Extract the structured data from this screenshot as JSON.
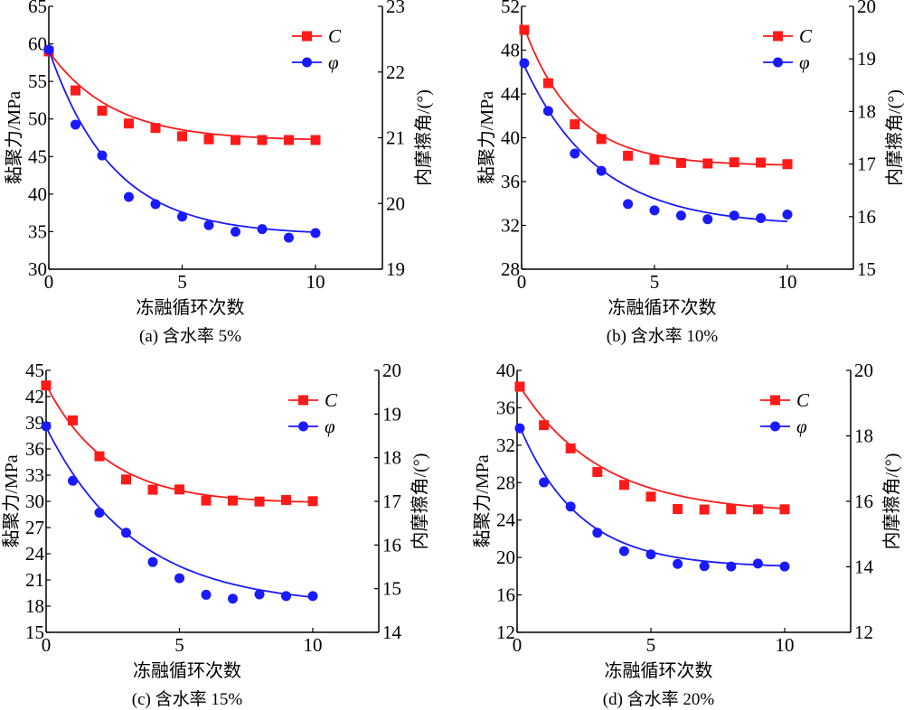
{
  "colors": {
    "C": "#ff1a1a",
    "phi": "#1a1aff",
    "axis": "#000000"
  },
  "chart_data": [
    {
      "type": "line",
      "caption": "(a) 含水率 5%",
      "xlabel": "冻融循环次数",
      "ylabel": "黏聚力/MPa",
      "y2label": "内摩擦角/(°)",
      "xlim": [
        0,
        12.5
      ],
      "xticks": [
        0,
        5,
        10
      ],
      "ylim": [
        30,
        65
      ],
      "yticks": [
        30,
        35,
        40,
        45,
        50,
        55,
        60,
        65
      ],
      "y2lim": [
        19,
        23
      ],
      "y2ticks": [
        19,
        20,
        21,
        22,
        23
      ],
      "legend": {
        "position": "top-right",
        "entries": [
          "C",
          "φ"
        ]
      },
      "x": [
        0,
        1,
        2,
        3,
        4,
        5,
        6,
        7,
        8,
        9,
        10
      ],
      "series": [
        {
          "name": "C",
          "axis": "left",
          "marker": "square",
          "values": [
            59.0,
            53.8,
            51.1,
            49.4,
            48.8,
            47.7,
            47.3,
            47.2,
            47.2,
            47.2,
            47.2
          ],
          "fit": {
            "a": 11.9,
            "k": 0.42,
            "c": 47.1
          }
        },
        {
          "name": "φ",
          "axis": "right",
          "marker": "circle",
          "values": [
            22.34,
            21.2,
            20.73,
            20.1,
            19.99,
            19.8,
            19.67,
            19.57,
            19.61,
            19.48,
            19.55
          ],
          "fit": {
            "a": 2.82,
            "k": 0.42,
            "c": 19.52
          }
        }
      ]
    },
    {
      "type": "line",
      "caption": "(b) 含水率 10%",
      "xlabel": "冻融循环次数",
      "ylabel": "黏聚力/MPa",
      "y2label": "内摩擦角/(°)",
      "xlim": [
        0,
        12.5
      ],
      "xticks": [
        0,
        5,
        10
      ],
      "ylim": [
        28,
        52
      ],
      "yticks": [
        28,
        32,
        36,
        40,
        44,
        48,
        52
      ],
      "y2lim": [
        15,
        20
      ],
      "y2ticks": [
        15,
        16,
        17,
        18,
        19,
        20
      ],
      "legend": {
        "position": "top-right",
        "entries": [
          "C",
          "φ"
        ]
      },
      "x": [
        0.1,
        1,
        2,
        3,
        4,
        5,
        6,
        7,
        8,
        9,
        10
      ],
      "series": [
        {
          "name": "C",
          "axis": "left",
          "marker": "square",
          "values": [
            49.85,
            44.98,
            41.23,
            39.88,
            38.36,
            37.98,
            37.7,
            37.65,
            37.76,
            37.73,
            37.59
          ],
          "fit": {
            "a": 12.6,
            "k": 0.52,
            "c": 37.45
          }
        },
        {
          "name": "φ",
          "axis": "right",
          "marker": "circle",
          "values": [
            18.92,
            18.01,
            17.2,
            16.87,
            16.24,
            16.12,
            16.02,
            15.95,
            16.02,
            15.97,
            16.04
          ],
          "fit": {
            "a": 3.05,
            "k": 0.36,
            "c": 15.82
          }
        }
      ]
    },
    {
      "type": "line",
      "caption": "(c) 含水率 15%",
      "xlabel": "冻融循环次数",
      "ylabel": "黏聚力/MPa",
      "y2label": "内摩擦角/(°)",
      "xlim": [
        0,
        12.5
      ],
      "xticks": [
        0,
        5,
        10
      ],
      "ylim": [
        15,
        45
      ],
      "yticks": [
        15,
        18,
        21,
        24,
        27,
        30,
        33,
        36,
        39,
        42,
        45
      ],
      "y2lim": [
        14,
        20
      ],
      "y2ticks": [
        14,
        15,
        16,
        17,
        18,
        19,
        20
      ],
      "legend": {
        "position": "top-right",
        "entries": [
          "C",
          "φ"
        ]
      },
      "x": [
        0,
        1,
        2,
        3,
        4,
        5,
        6,
        7,
        8,
        9,
        10
      ],
      "series": [
        {
          "name": "C",
          "axis": "left",
          "marker": "square",
          "values": [
            43.27,
            39.27,
            35.16,
            32.5,
            31.33,
            31.36,
            30.09,
            30.09,
            29.98,
            30.16,
            30.02
          ],
          "fit": {
            "a": 13.6,
            "k": 0.44,
            "c": 29.75
          }
        },
        {
          "name": "φ",
          "axis": "right",
          "marker": "circle",
          "values": [
            18.72,
            17.47,
            16.74,
            16.28,
            15.61,
            15.24,
            14.86,
            14.77,
            14.87,
            14.83,
            14.83
          ],
          "fit": {
            "a": 4.1,
            "k": 0.3,
            "c": 14.6
          }
        }
      ]
    },
    {
      "type": "line",
      "caption": "(d) 含水率 20%",
      "xlabel": "冻融循环次数",
      "ylabel": "黏聚力/MPa",
      "y2label": "内摩擦角/(°)",
      "xlim": [
        0,
        12.5
      ],
      "xticks": [
        0,
        5,
        10
      ],
      "ylim": [
        12,
        40
      ],
      "yticks": [
        12,
        16,
        20,
        24,
        28,
        32,
        36,
        40
      ],
      "y2lim": [
        12,
        20
      ],
      "y2ticks": [
        12,
        14,
        16,
        18,
        20
      ],
      "legend": {
        "position": "top-right",
        "entries": [
          "C",
          "φ"
        ]
      },
      "x": [
        0.1,
        1,
        2,
        3,
        4,
        5,
        6,
        7,
        8,
        9,
        10
      ],
      "series": [
        {
          "name": "C",
          "axis": "left",
          "marker": "square",
          "values": [
            38.26,
            34.14,
            31.66,
            29.14,
            27.76,
            26.5,
            25.18,
            25.12,
            25.15,
            25.15,
            25.15
          ],
          "fit": {
            "a": 13.6,
            "k": 0.33,
            "c": 24.7
          }
        },
        {
          "name": "φ",
          "axis": "right",
          "marker": "circle",
          "values": [
            18.23,
            16.58,
            15.84,
            15.04,
            14.48,
            14.38,
            14.09,
            14.02,
            14.01,
            14.1,
            14.01
          ],
          "fit": {
            "a": 4.3,
            "k": 0.45,
            "c": 13.98
          }
        }
      ]
    }
  ]
}
